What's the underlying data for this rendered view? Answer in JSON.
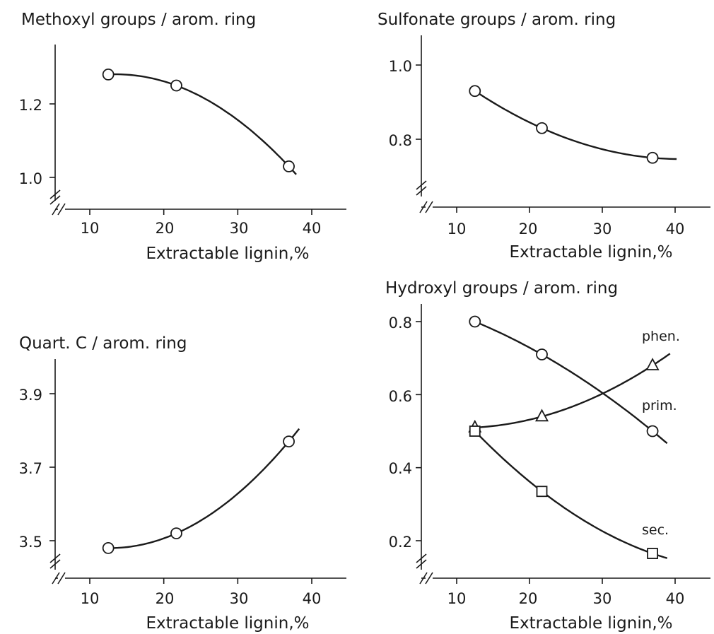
{
  "chart_data": [
    {
      "type": "line",
      "title": "Methoxyl groups / arom. ring",
      "xlabel": "Extractable lignin,%",
      "ylabel": "",
      "xlim": [
        5,
        45
      ],
      "ylim": [
        0.9,
        1.35
      ],
      "xticks": [
        "10",
        "20",
        "30",
        "40"
      ],
      "yticks": [
        "1.0",
        "1.2"
      ],
      "axis_break": true,
      "grid": false,
      "series": [
        {
          "name": "",
          "marker": "circle",
          "x": [
            12.5,
            21.7,
            36.9
          ],
          "y": [
            1.28,
            1.25,
            1.03
          ]
        }
      ]
    },
    {
      "type": "line",
      "title": "Sulfonate groups / arom. ring",
      "xlabel": "Extractable lignin,%",
      "ylabel": "",
      "xlim": [
        5,
        45
      ],
      "ylim": [
        0.65,
        1.05
      ],
      "xticks": [
        "10",
        "20",
        "30",
        "40"
      ],
      "yticks": [
        "1.0",
        "0.8"
      ],
      "axis_break": true,
      "grid": false,
      "series": [
        {
          "name": "",
          "marker": "circle",
          "x": [
            12.5,
            21.7,
            36.9
          ],
          "y": [
            0.93,
            0.83,
            0.75
          ]
        }
      ]
    },
    {
      "type": "line",
      "title": "Quart. C / arom. ring",
      "xlabel": "Extractable lignin,%",
      "ylabel": "",
      "xlim": [
        5,
        45
      ],
      "ylim": [
        3.4,
        4.0
      ],
      "xticks": [
        "10",
        "20",
        "30",
        "40"
      ],
      "yticks": [
        "3.9",
        "3.7",
        "3.5"
      ],
      "axis_break": true,
      "grid": false,
      "series": [
        {
          "name": "",
          "marker": "circle",
          "x": [
            12.5,
            21.7,
            36.9
          ],
          "y": [
            3.48,
            3.52,
            3.77
          ]
        }
      ]
    },
    {
      "type": "line",
      "title": "Hydroxyl groups / arom. ring",
      "xlabel": "Extractable lignin,%",
      "ylabel": "",
      "xlim": [
        5,
        45
      ],
      "ylim": [
        0.1,
        0.85
      ],
      "xticks": [
        "10",
        "20",
        "30",
        "40"
      ],
      "yticks": [
        "0.8",
        "0.6",
        "0.4",
        "0.2"
      ],
      "axis_break": true,
      "grid": false,
      "series": [
        {
          "name": "phen.",
          "marker": "triangle",
          "x": [
            12.5,
            21.7,
            36.9
          ],
          "y": [
            0.51,
            0.54,
            0.68
          ]
        },
        {
          "name": "prim.",
          "marker": "circle",
          "x": [
            12.5,
            21.7,
            36.9
          ],
          "y": [
            0.8,
            0.71,
            0.5
          ]
        },
        {
          "name": "sec.",
          "marker": "square",
          "x": [
            12.5,
            21.7,
            36.9
          ],
          "y": [
            0.5,
            0.335,
            0.165
          ]
        }
      ]
    }
  ]
}
